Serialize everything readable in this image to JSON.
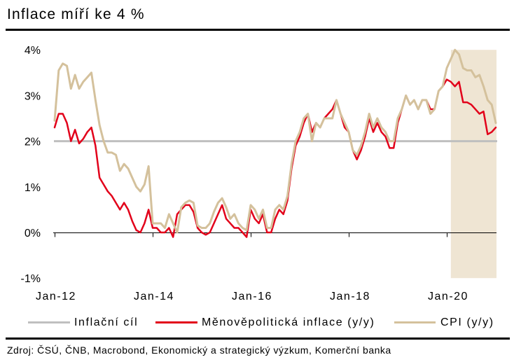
{
  "chart_data": {
    "type": "line",
    "title": "Inflace míří ke 4 %",
    "x_start": 2012,
    "step_months": 1,
    "xlim": [
      2012,
      2021
    ],
    "ylim": [
      -1,
      4
    ],
    "x_ticks": [
      {
        "x": 2012,
        "label": "Jan-12"
      },
      {
        "x": 2014,
        "label": "Jan-14"
      },
      {
        "x": 2016,
        "label": "Jan-16"
      },
      {
        "x": 2018,
        "label": "Jan-18"
      },
      {
        "x": 2020,
        "label": "Jan-20"
      }
    ],
    "y_ticks": [
      {
        "value": 4,
        "label": "4%"
      },
      {
        "value": 3,
        "label": "3%"
      },
      {
        "value": 2,
        "label": "2%"
      },
      {
        "value": 1,
        "label": "1%"
      },
      {
        "value": 0,
        "label": "0%"
      },
      {
        "value": -1,
        "label": "-1%"
      }
    ],
    "target": {
      "name": "Inflační cíl",
      "value": 2,
      "color": "#BFBFBF"
    },
    "series": [
      {
        "name": "Měnověpolitická inflace (y/y)",
        "color": "#E2001A",
        "values": [
          2.3,
          2.6,
          2.6,
          2.4,
          2.0,
          2.25,
          1.95,
          2.05,
          2.2,
          2.3,
          1.9,
          1.2,
          1.05,
          0.9,
          0.8,
          0.65,
          0.5,
          0.65,
          0.5,
          0.25,
          0.05,
          0.0,
          0.2,
          0.5,
          0.1,
          0.1,
          0.0,
          0.0,
          0.1,
          -0.1,
          0.4,
          0.5,
          0.6,
          0.6,
          0.45,
          0.1,
          0.0,
          -0.05,
          0.0,
          0.2,
          0.4,
          0.6,
          0.3,
          0.2,
          0.1,
          0.1,
          0.0,
          -0.1,
          0.5,
          0.3,
          0.2,
          0.4,
          0.0,
          0.0,
          0.3,
          0.5,
          0.4,
          0.7,
          1.4,
          1.9,
          2.1,
          2.4,
          2.6,
          2.2,
          2.4,
          2.3,
          2.5,
          2.6,
          2.7,
          2.9,
          2.6,
          2.3,
          2.2,
          1.8,
          1.6,
          1.8,
          2.1,
          2.5,
          2.2,
          2.4,
          2.2,
          2.1,
          1.85,
          1.85,
          2.4,
          2.7,
          3.0,
          2.8,
          2.9,
          2.7,
          2.9,
          2.9,
          2.7,
          2.7,
          3.1,
          3.2,
          3.35,
          3.3,
          3.2,
          3.3,
          2.85,
          2.85,
          2.8,
          2.7,
          2.6,
          2.65,
          2.15,
          2.2,
          2.3
        ]
      },
      {
        "name": "CPI (y/y)",
        "color": "#D4C19C",
        "values": [
          2.45,
          3.55,
          3.7,
          3.65,
          3.15,
          3.45,
          3.15,
          3.3,
          3.4,
          3.5,
          2.9,
          2.35,
          2.0,
          1.75,
          1.75,
          1.7,
          1.35,
          1.5,
          1.4,
          1.2,
          1.0,
          0.9,
          1.05,
          1.45,
          0.2,
          0.2,
          0.2,
          0.1,
          0.4,
          0.2,
          0.0,
          0.55,
          0.65,
          0.7,
          0.65,
          0.15,
          0.1,
          0.1,
          0.2,
          0.45,
          0.65,
          0.75,
          0.55,
          0.3,
          0.4,
          0.2,
          0.1,
          0.05,
          0.6,
          0.5,
          0.3,
          0.5,
          0.1,
          0.1,
          0.5,
          0.6,
          0.5,
          0.8,
          1.5,
          2.0,
          2.2,
          2.5,
          2.6,
          2.0,
          2.4,
          2.3,
          2.5,
          2.5,
          2.5,
          2.9,
          2.6,
          2.4,
          2.2,
          1.8,
          1.7,
          1.9,
          2.2,
          2.6,
          2.3,
          2.5,
          2.3,
          2.2,
          2.0,
          2.0,
          2.5,
          2.7,
          3.0,
          2.8,
          2.9,
          2.7,
          2.9,
          2.9,
          2.6,
          2.7,
          3.1,
          3.2,
          3.6,
          3.8,
          4.0,
          3.9,
          3.6,
          3.55,
          3.55,
          3.4,
          3.45,
          3.2,
          2.9,
          2.8,
          2.4
        ]
      }
    ],
    "shaded_region": {
      "from": 2020.0833,
      "to": 2021.0,
      "color": "#EFE5D3"
    },
    "grid": false,
    "legend_position": "bottom",
    "source": "Zdroj: ČSÚ, ČNB, Macrobond, Ekonomický a strategický výzkum, Komerční banka"
  }
}
